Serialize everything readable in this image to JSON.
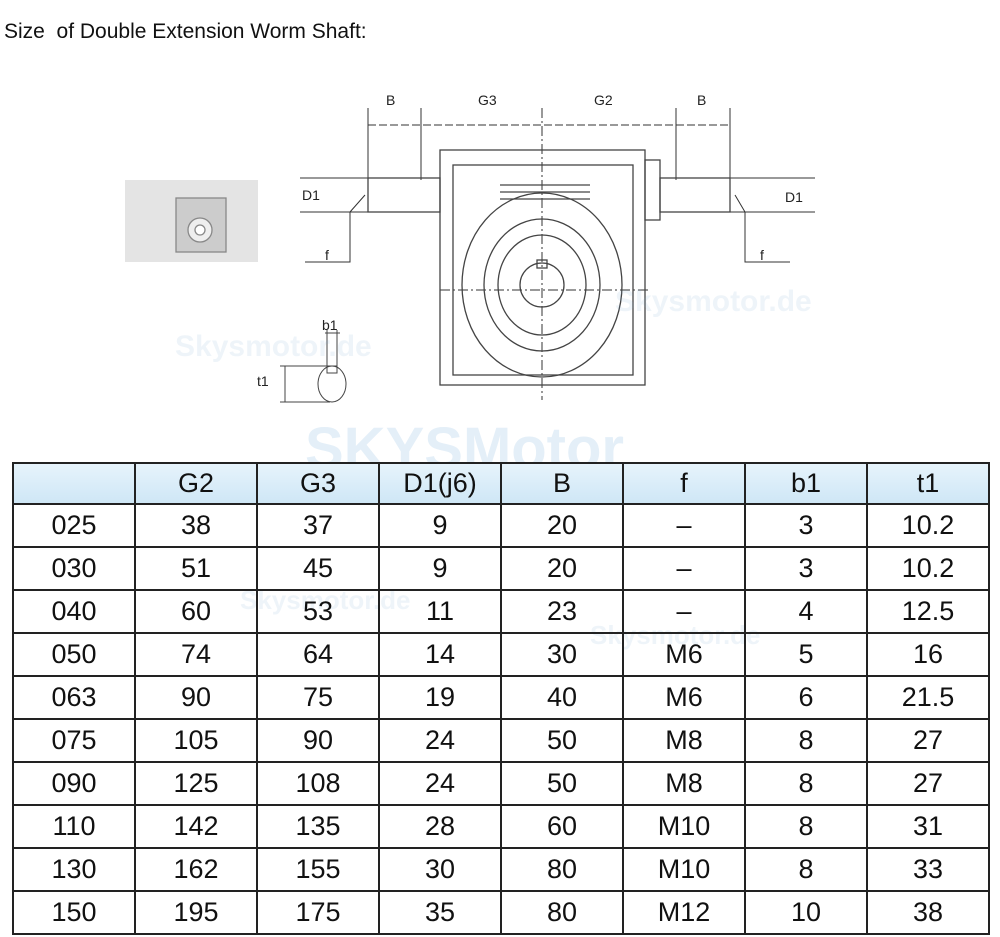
{
  "title": "Size  of Double Extension Worm Shaft:",
  "diagram": {
    "labels": {
      "b_left": "B",
      "g3": "G3",
      "g2": "G2",
      "b_right": "B",
      "d1_left": "D1",
      "d1_right": "D1",
      "f_left": "f",
      "f_right": "f",
      "b1": "b1",
      "t1": "t1"
    }
  },
  "watermarks": [
    "Skysmotor.de",
    "Skysmotor.de",
    "SKYSMotor",
    "Skysmotor.de",
    "Skysmotor.de"
  ],
  "table": {
    "headers": [
      "",
      "G2",
      "G3",
      "D1(j6)",
      "B",
      "f",
      "b1",
      "t1"
    ],
    "rows": [
      [
        "025",
        "38",
        "37",
        "9",
        "20",
        "–",
        "3",
        "10.2"
      ],
      [
        "030",
        "51",
        "45",
        "9",
        "20",
        "–",
        "3",
        "10.2"
      ],
      [
        "040",
        "60",
        "53",
        "11",
        "23",
        "–",
        "4",
        "12.5"
      ],
      [
        "050",
        "74",
        "64",
        "14",
        "30",
        "M6",
        "5",
        "16"
      ],
      [
        "063",
        "90",
        "75",
        "19",
        "40",
        "M6",
        "6",
        "21.5"
      ],
      [
        "075",
        "105",
        "90",
        "24",
        "50",
        "M8",
        "8",
        "27"
      ],
      [
        "090",
        "125",
        "108",
        "24",
        "50",
        "M8",
        "8",
        "27"
      ],
      [
        "110",
        "142",
        "135",
        "28",
        "60",
        "M10",
        "8",
        "31"
      ],
      [
        "130",
        "162",
        "155",
        "30",
        "80",
        "M10",
        "8",
        "33"
      ],
      [
        "150",
        "195",
        "175",
        "35",
        "80",
        "M12",
        "10",
        "38"
      ]
    ]
  }
}
